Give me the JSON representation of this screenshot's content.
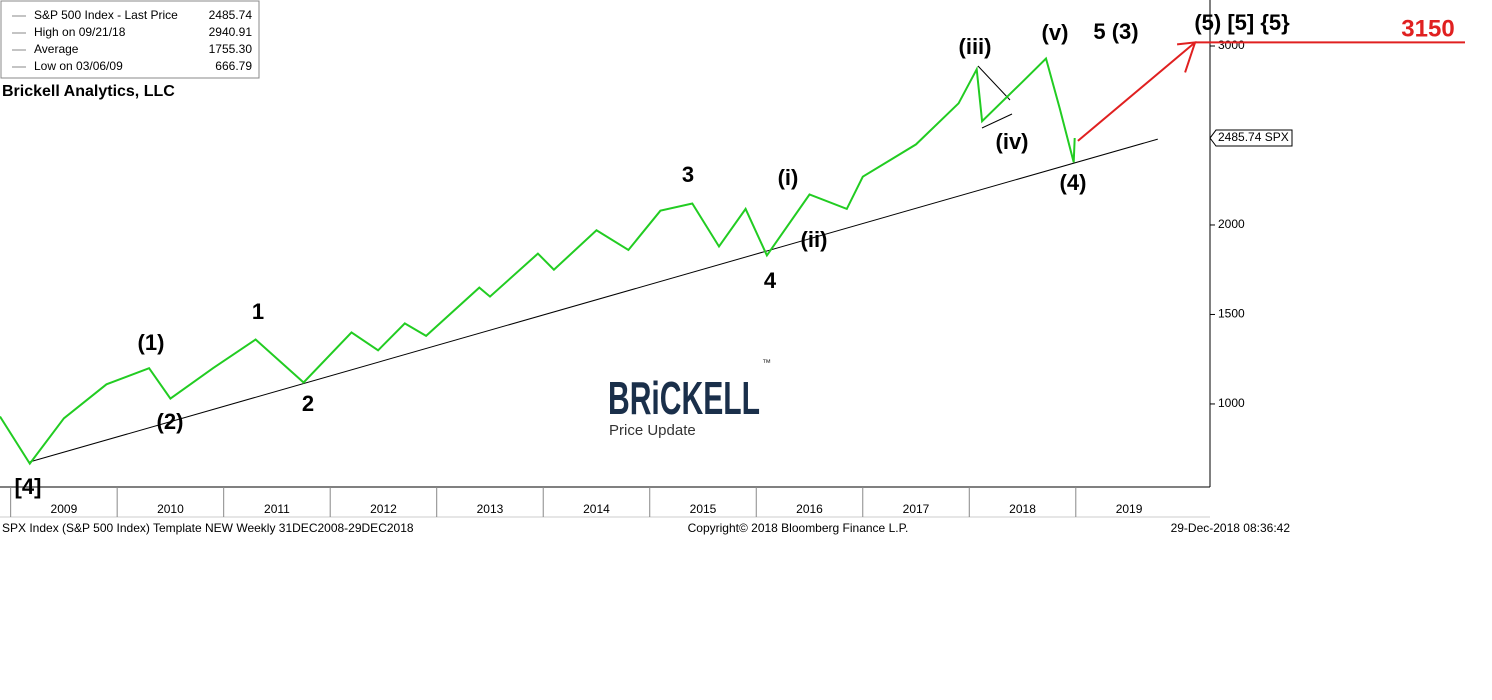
{
  "chart_data": {
    "type": "line",
    "title": "Brickell Analytics, LLC",
    "stats": [
      {
        "name": "S&P 500 Index - Last Price",
        "value": 2485.74
      },
      {
        "name": "High on 09/21/18",
        "value": 2940.91
      },
      {
        "name": "Average",
        "value": {
          "value": 1755.3,
          "label": "1755.30"
        }
      },
      {
        "name": "Low on 03/06/09",
        "value": 666.79
      }
    ],
    "series": [
      {
        "name": "S&P 500 Index",
        "color": "#22cc22",
        "x": [
          2008.9,
          2009.18,
          2009.5,
          2009.9,
          2010.3,
          2010.5,
          2010.9,
          2011.3,
          2011.75,
          2012.2,
          2012.45,
          2012.7,
          2012.9,
          2013.4,
          2013.5,
          2013.95,
          2014.1,
          2014.5,
          2014.8,
          2015.1,
          2015.4,
          2015.65,
          2015.9,
          2016.1,
          2016.5,
          2016.85,
          2017.0,
          2017.5,
          2017.9,
          2018.07,
          2018.12,
          2018.5,
          2018.72,
          2018.85,
          2018.98,
          2018.99
        ],
        "values": [
          930,
          667,
          920,
          1110,
          1200,
          1030,
          1200,
          1360,
          1120,
          1400,
          1300,
          1450,
          1380,
          1650,
          1600,
          1840,
          1750,
          1970,
          1860,
          2080,
          2120,
          1880,
          2090,
          1830,
          2170,
          2090,
          2270,
          2450,
          2680,
          2870,
          2580,
          2800,
          2930,
          2650,
          2350,
          2485.74
        ]
      }
    ],
    "trendline": {
      "x": [
        2009.18,
        2019.77
      ],
      "values": [
        676,
        2480
      ],
      "color": "#000000"
    },
    "projection": {
      "x": [
        2019.02,
        2020.12
      ],
      "values": [
        2470,
        3020
      ],
      "color": "#e02020"
    },
    "target_label": "3150",
    "last_price_label": "2485.74 SPX",
    "annotations": [
      "[4]",
      "(1)",
      "(2)",
      "1",
      "2",
      "3",
      "4",
      "(i)",
      "(ii)",
      "(iii)",
      "(iv)",
      "(v)",
      "5 (3)",
      "(4)",
      "(5) [5] {5}"
    ],
    "watermark": {
      "logo": "BRiCKELL",
      "mark": "™",
      "caption": "Price Update"
    },
    "footer": {
      "left": "SPX Index (S&P 500 Index) Template NEW  Weekly 31DEC2008-29DEC2018",
      "center": "Copyright© 2018 Bloomberg Finance L.P.",
      "right": "29-Dec-2018 08:36:42"
    },
    "xlim": [
      2008.9,
      2020.26
    ],
    "xticks": [
      {
        "value": 2009.5,
        "label": "2009"
      },
      {
        "value": 2010.5,
        "label": "2010"
      },
      {
        "value": 2011.5,
        "label": "2011"
      },
      {
        "value": 2012.5,
        "label": "2012"
      },
      {
        "value": 2013.5,
        "label": "2013"
      },
      {
        "value": 2014.5,
        "label": "2014"
      },
      {
        "value": 2015.5,
        "label": "2015"
      },
      {
        "value": 2016.5,
        "label": "2016"
      },
      {
        "value": 2017.5,
        "label": "2017"
      },
      {
        "value": 2018.5,
        "label": "2018"
      },
      {
        "value": 2019.5,
        "label": "2019"
      }
    ],
    "ylim": [
      536,
      3257
    ],
    "yticks": [
      1000,
      1500,
      2000,
      3000
    ]
  }
}
